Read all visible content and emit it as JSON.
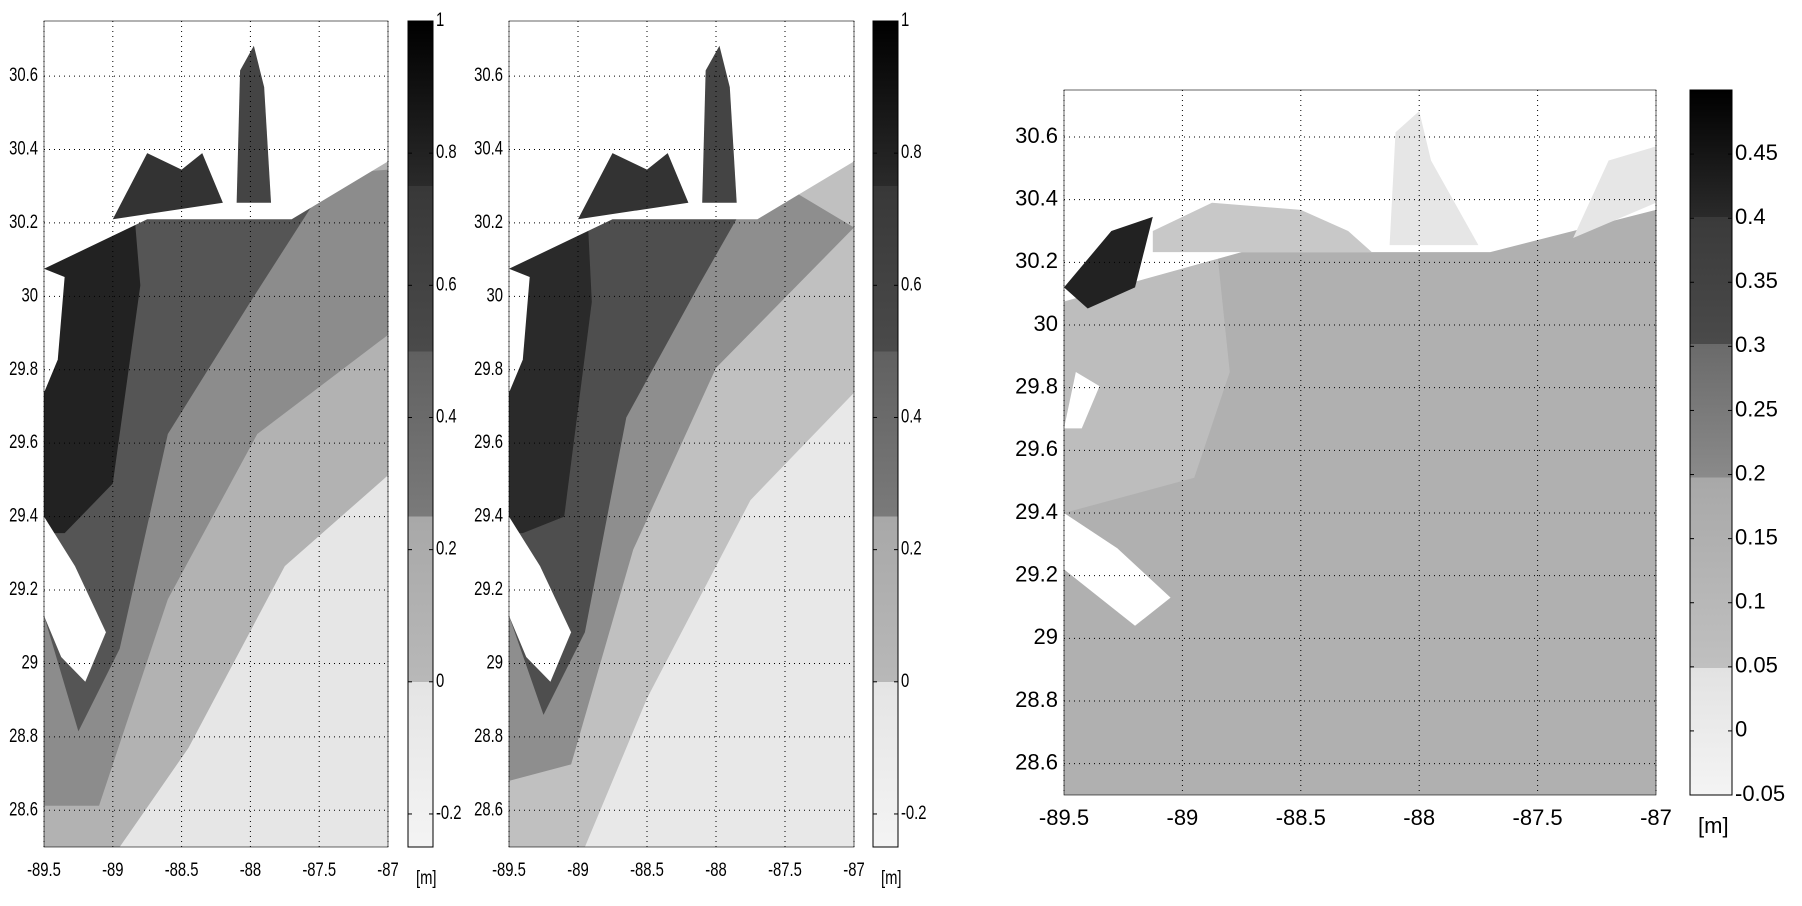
{
  "chart_data": [
    {
      "type": "map",
      "xlim": [
        -89.5,
        -87
      ],
      "ylim": [
        28.5,
        30.75
      ],
      "xticks": [
        -89.5,
        -89,
        -88.5,
        -88,
        -87.5,
        -87
      ],
      "yticks": [
        28.6,
        28.8,
        29,
        29.2,
        29.4,
        29.6,
        29.8,
        30,
        30.2,
        30.4,
        30.6
      ],
      "grid": true,
      "colorbar": {
        "lim": [
          -0.25,
          1
        ],
        "ticks": [
          -0.2,
          0,
          0.2,
          0.4,
          0.6,
          0.8,
          1
        ],
        "label": "[m]"
      }
    },
    {
      "type": "map",
      "xlim": [
        -89.5,
        -87
      ],
      "ylim": [
        28.5,
        30.75
      ],
      "xticks": [
        -89.5,
        -89,
        -88.5,
        -88,
        -87.5,
        -87
      ],
      "yticks": [
        28.6,
        28.8,
        29,
        29.2,
        29.4,
        29.6,
        29.8,
        30,
        30.2,
        30.4,
        30.6
      ],
      "grid": true,
      "colorbar": {
        "lim": [
          -0.25,
          1
        ],
        "ticks": [
          -0.2,
          0,
          0.2,
          0.4,
          0.6,
          0.8,
          1
        ],
        "label": "[m]"
      }
    },
    {
      "type": "map",
      "xlim": [
        -89.5,
        -87
      ],
      "ylim": [
        28.5,
        30.75
      ],
      "xticks": [
        -89.5,
        -89,
        -88.5,
        -88,
        -87.5,
        -87
      ],
      "yticks": [
        28.6,
        28.8,
        29,
        29.2,
        29.4,
        29.6,
        29.8,
        30,
        30.2,
        30.4,
        30.6
      ],
      "grid": true,
      "colorbar": {
        "lim": [
          -0.05,
          0.5
        ],
        "ticks": [
          -0.05,
          0,
          0.05,
          0.1,
          0.15,
          0.2,
          0.25,
          0.3,
          0.35,
          0.4,
          0.45
        ],
        "label": "[m]"
      }
    }
  ]
}
